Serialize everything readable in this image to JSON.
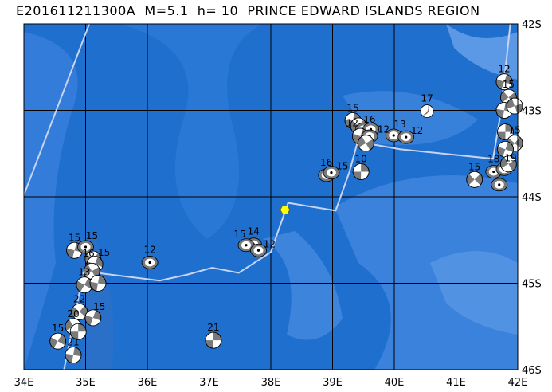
{
  "title": "E201611211300A  M=5.1  h= 10  PRINCE EDWARD ISLANDS REGION",
  "map": {
    "lon_range": [
      34,
      42
    ],
    "lat_range_south": [
      42,
      46
    ],
    "lon_ticks": [
      "34E",
      "35E",
      "36E",
      "37E",
      "38E",
      "39E",
      "40E",
      "41E",
      "42E"
    ],
    "lat_ticks": [
      "42S",
      "43S",
      "44S",
      "45S",
      "46S"
    ],
    "colors": {
      "ocean_deep": "#1f6fcf",
      "ocean_mid": "#3a80dc",
      "ocean_light": "#5b98e6",
      "line": "#c8d4f0",
      "gray": "#7a7a7a",
      "epicenter": "#ffff00"
    },
    "epicenter": {
      "lon": 38.23,
      "lat": 44.15
    },
    "plate_boundary": [
      [
        [
          34.0,
          43.98
        ],
        [
          35.06,
          42.0
        ]
      ],
      [
        [
          34.65,
          46.0
        ],
        [
          34.97,
          44.86
        ],
        [
          35.4,
          44.9
        ],
        [
          36.2,
          44.97
        ],
        [
          36.65,
          44.9
        ],
        [
          37.05,
          44.82
        ],
        [
          37.48,
          44.88
        ],
        [
          38.0,
          44.64
        ],
        [
          38.28,
          44.07
        ],
        [
          39.05,
          44.16
        ],
        [
          39.27,
          43.72
        ],
        [
          39.4,
          43.38
        ],
        [
          39.7,
          43.4
        ],
        [
          40.1,
          43.45
        ],
        [
          41.6,
          43.56
        ],
        [
          41.72,
          43.05
        ],
        [
          41.88,
          42.0
        ]
      ]
    ],
    "events": [
      {
        "lon": 40.53,
        "lat": 43.01,
        "depth": "17",
        "type": "mixed",
        "rot": 30
      },
      {
        "lon": 39.33,
        "lat": 43.12,
        "depth": "15",
        "type": "quad",
        "rot": 10
      },
      {
        "lon": 39.42,
        "lat": 43.18,
        "depth": "16",
        "type": "quad",
        "rot": 40
      },
      {
        "lon": 39.5,
        "lat": 43.22,
        "depth": "12",
        "type": "ring",
        "rot": 0
      },
      {
        "lon": 39.62,
        "lat": 43.22,
        "depth": "12",
        "type": "ring",
        "rot": 0
      },
      {
        "lon": 39.45,
        "lat": 43.3,
        "depth": "",
        "type": "quad",
        "rot": 20
      },
      {
        "lon": 39.6,
        "lat": 43.3,
        "depth": "",
        "type": "ring",
        "rot": 0
      },
      {
        "lon": 39.54,
        "lat": 43.38,
        "depth": "",
        "type": "quad",
        "rot": 60
      },
      {
        "lon": 39.99,
        "lat": 43.29,
        "depth": "13",
        "type": "ring",
        "rot": 0
      },
      {
        "lon": 40.19,
        "lat": 43.31,
        "depth": "12",
        "type": "ring",
        "rot": 0
      },
      {
        "lon": 39.46,
        "lat": 43.71,
        "depth": "10",
        "type": "quad",
        "rot": 0
      },
      {
        "lon": 38.9,
        "lat": 43.75,
        "depth": "16",
        "type": "ring",
        "rot": 0
      },
      {
        "lon": 38.98,
        "lat": 43.72,
        "depth": "15",
        "type": "ring",
        "rot": 0
      },
      {
        "lon": 41.3,
        "lat": 43.8,
        "depth": "15",
        "type": "quad",
        "rot": 45
      },
      {
        "lon": 41.61,
        "lat": 43.71,
        "depth": "18",
        "type": "ring",
        "rot": 0
      },
      {
        "lon": 41.78,
        "lat": 43.68,
        "depth": "19",
        "type": "ring",
        "rot": 0
      },
      {
        "lon": 41.7,
        "lat": 43.86,
        "depth": "",
        "type": "ring",
        "rot": 0
      },
      {
        "lon": 41.78,
        "lat": 42.67,
        "depth": "12",
        "type": "quad",
        "rot": 20
      },
      {
        "lon": 41.85,
        "lat": 42.85,
        "depth": "15",
        "type": "quad",
        "rot": 50
      },
      {
        "lon": 41.78,
        "lat": 43.0,
        "depth": "",
        "type": "quad",
        "rot": 10
      },
      {
        "lon": 41.95,
        "lat": 42.95,
        "depth": "",
        "type": "quad",
        "rot": 70
      },
      {
        "lon": 41.8,
        "lat": 43.25,
        "depth": "",
        "type": "quad",
        "rot": 0
      },
      {
        "lon": 41.95,
        "lat": 43.38,
        "depth": "15",
        "type": "quad",
        "rot": 40
      },
      {
        "lon": 41.8,
        "lat": 43.45,
        "depth": "",
        "type": "quad",
        "rot": 20
      },
      {
        "lon": 41.85,
        "lat": 43.62,
        "depth": "",
        "type": "quad",
        "rot": 60
      },
      {
        "lon": 37.72,
        "lat": 44.55,
        "depth": "14",
        "type": "ring",
        "rot": 0
      },
      {
        "lon": 37.6,
        "lat": 44.56,
        "depth": "15",
        "type": "ring",
        "rot": 0
      },
      {
        "lon": 37.8,
        "lat": 44.62,
        "depth": "12",
        "type": "ring",
        "rot": 0
      },
      {
        "lon": 36.04,
        "lat": 44.76,
        "depth": "12",
        "type": "ring",
        "rot": 0
      },
      {
        "lon": 34.82,
        "lat": 44.62,
        "depth": "15",
        "type": "quad",
        "rot": 15
      },
      {
        "lon": 35.0,
        "lat": 44.58,
        "depth": "15",
        "type": "ring",
        "rot": 0
      },
      {
        "lon": 35.12,
        "lat": 44.72,
        "depth": "15",
        "type": "quad",
        "rot": 40
      },
      {
        "lon": 35.15,
        "lat": 44.78,
        "depth": "16",
        "type": "quad",
        "rot": 20
      },
      {
        "lon": 35.1,
        "lat": 44.86,
        "depth": "",
        "type": "quad",
        "rot": 60
      },
      {
        "lon": 34.98,
        "lat": 45.02,
        "depth": "13",
        "type": "quad",
        "rot": 30
      },
      {
        "lon": 35.2,
        "lat": 45.0,
        "depth": "",
        "type": "quad",
        "rot": 10
      },
      {
        "lon": 34.9,
        "lat": 45.33,
        "depth": "22",
        "type": "quad",
        "rot": 40
      },
      {
        "lon": 35.12,
        "lat": 45.4,
        "depth": "15",
        "type": "quad",
        "rot": 20
      },
      {
        "lon": 34.8,
        "lat": 45.5,
        "depth": "20",
        "type": "quad",
        "rot": 60
      },
      {
        "lon": 34.88,
        "lat": 45.56,
        "depth": "",
        "type": "quad",
        "rot": 0
      },
      {
        "lon": 34.55,
        "lat": 45.67,
        "depth": "15",
        "type": "quad",
        "rot": 30
      },
      {
        "lon": 34.8,
        "lat": 45.83,
        "depth": "21",
        "type": "quad",
        "rot": 10
      },
      {
        "lon": 37.07,
        "lat": 45.66,
        "depth": "21",
        "type": "quad",
        "rot": 0
      }
    ]
  }
}
